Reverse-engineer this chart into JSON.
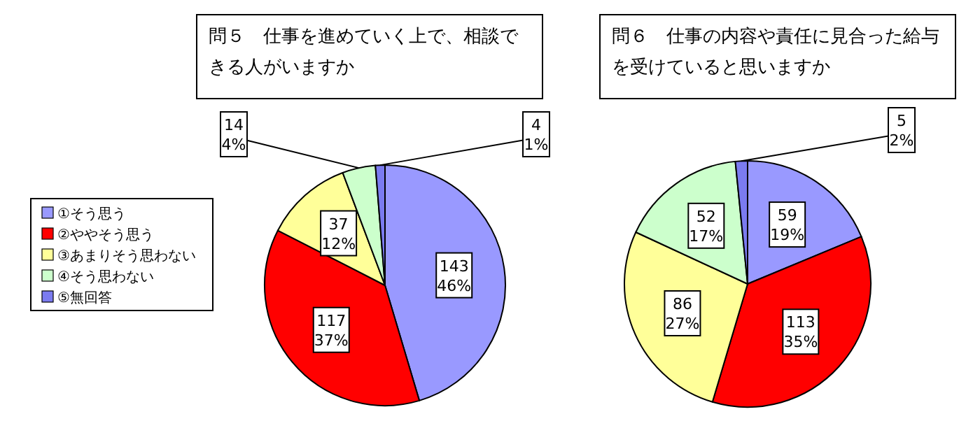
{
  "chart_data": [
    {
      "type": "pie",
      "title": "問５　仕事を進めていく上で、相談できる人がいますか",
      "categories": [
        "①そう思う",
        "②ややそう思う",
        "③あまりそう思わない",
        "④そう思わない",
        "⑤無回答"
      ],
      "values": [
        143,
        117,
        37,
        14,
        4
      ],
      "colors": [
        "#9999ff",
        "#ff0000",
        "#ffff99",
        "#ccffcc",
        "#7b7bf0"
      ],
      "value_labels": [
        "143 46%",
        "117 37%",
        "37 12%",
        "14 4%",
        "4 1%"
      ],
      "legend": "left"
    },
    {
      "type": "pie",
      "title": "問６　仕事の内容や責任に見合った給与を受けていると思いますか",
      "values": [
        59,
        113,
        86,
        52,
        5
      ],
      "colors": [
        "#9999ff",
        "#ff0000",
        "#ffff99",
        "#ccffcc",
        "#7b7bf0"
      ],
      "value_labels": [
        "59 19%",
        "113 35%",
        "86 27%",
        "52 17%",
        "5 2%"
      ]
    }
  ]
}
